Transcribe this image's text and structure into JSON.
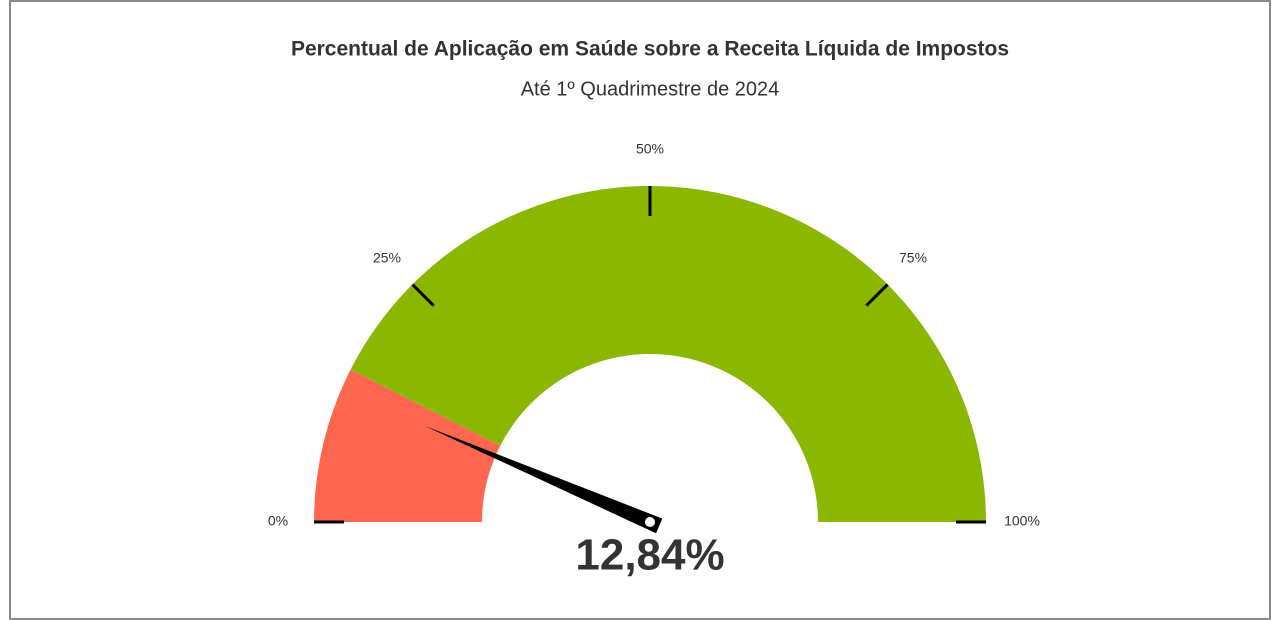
{
  "chart_data": {
    "type": "gauge",
    "title": "Percentual de Aplicação em Saúde sobre a Receita Líquida de Impostos",
    "subtitle": "Até 1º Quadrimestre de 2024",
    "value": 12.84,
    "value_label": "12,84%",
    "ylim": [
      0,
      100
    ],
    "yticks": [
      {
        "value": 0,
        "label": "0%"
      },
      {
        "value": 25,
        "label": "25%"
      },
      {
        "value": 50,
        "label": "50%"
      },
      {
        "value": 75,
        "label": "75%"
      },
      {
        "value": 100,
        "label": "100%"
      }
    ],
    "bands": [
      {
        "from": 0,
        "to": 15,
        "color": "#ff6650"
      },
      {
        "from": 15,
        "to": 100,
        "color": "#8ab800"
      }
    ],
    "needle_color": "#000000"
  }
}
